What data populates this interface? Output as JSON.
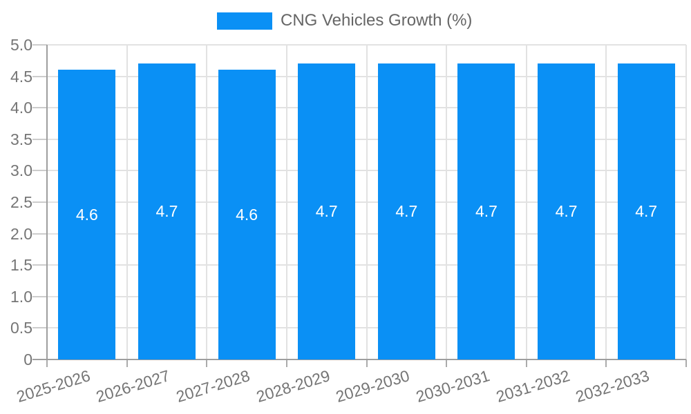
{
  "chart_data": {
    "type": "bar",
    "title": "CNG Vehicles Growth (%)",
    "legend": [
      "CNG Vehicles Growth (%)"
    ],
    "legend_position": "top-center",
    "categories": [
      "2025-2026",
      "2026-2027",
      "2027-2028",
      "2028-2029",
      "2029-2030",
      "2030-2031",
      "2031-2032",
      "2032-2033"
    ],
    "series": [
      {
        "name": "CNG Vehicles Growth (%)",
        "values": [
          4.6,
          4.7,
          4.6,
          4.7,
          4.7,
          4.7,
          4.7,
          4.7
        ]
      }
    ],
    "data_labels": [
      "4.6",
      "4.7",
      "4.6",
      "4.7",
      "4.7",
      "4.7",
      "4.7",
      "4.7"
    ],
    "xlabel": "",
    "ylabel": "",
    "ylim": [
      0,
      5
    ],
    "yticks": [
      0,
      0.5,
      1,
      1.5,
      2,
      2.5,
      3,
      3.5,
      4,
      4.5,
      5
    ],
    "ytick_labels": [
      "0",
      "0.5",
      "1.0",
      "1.5",
      "2.0",
      "2.5",
      "3.0",
      "3.5",
      "4.0",
      "4.5",
      "5.0"
    ],
    "grid": true,
    "x_label_rotation_deg": -17,
    "bar_color": "#0a90f5",
    "colors": {
      "bar": "#0a90f5",
      "value_label": "#ffffff",
      "grid": "#e2e2e2",
      "axis": "#9e9e9e",
      "y_tick": "#cccccc",
      "x_tick": "#ababab",
      "tick_text": "#757575",
      "legend_text": "#666666",
      "background": "#ffffff"
    }
  }
}
